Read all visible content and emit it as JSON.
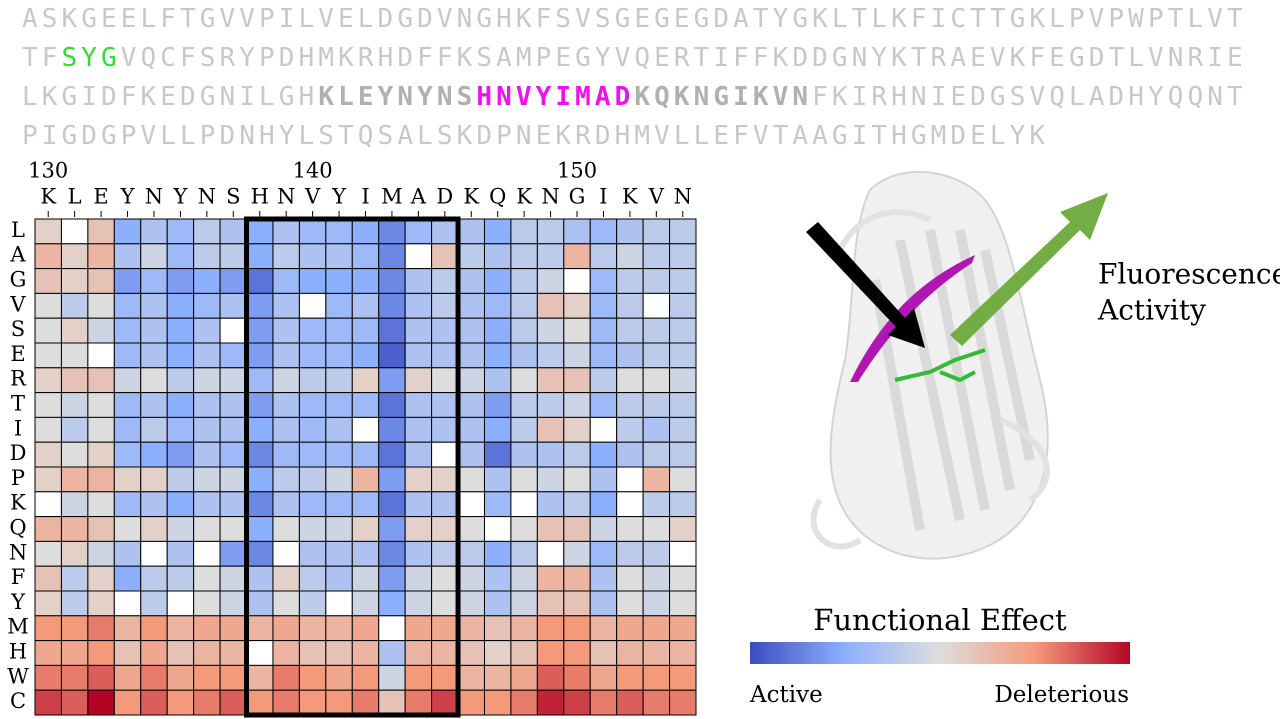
{
  "sequence": {
    "lines": [
      [
        {
          "text": "ASKGEELFTGVVPILVELDGDVNGHKFSVSGEGEGDATYGKLTLKFICTTGKLPVPWPTLVT",
          "color": "#c8c8c8",
          "bold": false
        }
      ],
      [
        {
          "text": "TF",
          "color": "#c8c8c8",
          "bold": false
        },
        {
          "text": "SYG",
          "color": "#33dd33",
          "bold": false
        },
        {
          "text": "VQCFSRYPDHMKRHDFFKSAMPEGYVQERTIFFKDDGNYKTRAEVKFEGDTLVNRIE",
          "color": "#c8c8c8",
          "bold": false
        }
      ],
      [
        {
          "text": "LKGIDFKEDGNILGH",
          "color": "#c8c8c8",
          "bold": false
        },
        {
          "text": "KLEYNYNS",
          "color": "#b0b0b0",
          "bold": true
        },
        {
          "text": "HNVYIMAD",
          "color": "#ee11ee",
          "bold": true
        },
        {
          "text": "KQKNGIKVN",
          "color": "#b0b0b0",
          "bold": true
        },
        {
          "text": "FKIRHNIEDGSVQLADHYQQNT",
          "color": "#c8c8c8",
          "bold": false
        }
      ],
      [
        {
          "text": "PIGDGPVLLPDNHYLSTQSALSKDPNEKRDHMVLLEFVTAAGITHGMDELYK",
          "color": "#c8c8c8",
          "bold": false
        }
      ]
    ]
  },
  "chart_data": {
    "type": "heatmap",
    "columns": [
      "K",
      "L",
      "E",
      "Y",
      "N",
      "Y",
      "N",
      "S",
      "H",
      "N",
      "V",
      "Y",
      "I",
      "M",
      "A",
      "D",
      "K",
      "Q",
      "K",
      "N",
      "G",
      "I",
      "K",
      "V",
      "N"
    ],
    "xlim": [
      129.5,
      154.5
    ],
    "xticks": [
      130,
      140,
      150
    ],
    "rows": [
      "L",
      "A",
      "G",
      "V",
      "S",
      "E",
      "R",
      "T",
      "I",
      "D",
      "P",
      "K",
      "Q",
      "N",
      "F",
      "Y",
      "M",
      "H",
      "W",
      "C"
    ],
    "values": [
      [
        0.1,
        null,
        0.2,
        -0.5,
        -0.3,
        -0.4,
        -0.2,
        -0.3,
        -0.5,
        -0.3,
        -0.4,
        -0.4,
        -0.5,
        -0.7,
        -0.4,
        -0.3,
        -0.3,
        -0.5,
        -0.2,
        -0.2,
        -0.3,
        -0.4,
        -0.3,
        -0.2,
        -0.2
      ],
      [
        0.3,
        0.1,
        0.3,
        -0.3,
        -0.1,
        -0.4,
        -0.2,
        -0.2,
        -0.5,
        -0.2,
        -0.3,
        -0.3,
        -0.4,
        -0.7,
        null,
        0.2,
        -0.2,
        -0.3,
        -0.2,
        -0.2,
        0.3,
        -0.2,
        -0.1,
        -0.2,
        -0.2
      ],
      [
        0.2,
        0.1,
        0.2,
        -0.6,
        -0.4,
        -0.6,
        -0.5,
        -0.6,
        -0.8,
        -0.4,
        -0.5,
        -0.5,
        -0.5,
        -0.7,
        -0.3,
        -0.2,
        -0.3,
        -0.5,
        -0.2,
        -0.1,
        null,
        -0.4,
        -0.2,
        -0.2,
        -0.2
      ],
      [
        0.0,
        -0.2,
        0.0,
        -0.4,
        -0.3,
        -0.5,
        -0.4,
        -0.3,
        -0.6,
        -0.3,
        null,
        -0.4,
        -0.3,
        -0.7,
        -0.3,
        -0.2,
        -0.3,
        -0.4,
        -0.2,
        0.2,
        0.1,
        -0.4,
        -0.2,
        null,
        -0.2
      ],
      [
        0.0,
        0.1,
        -0.1,
        -0.4,
        -0.3,
        -0.5,
        -0.3,
        null,
        -0.6,
        -0.3,
        -0.4,
        -0.4,
        -0.4,
        -0.8,
        -0.3,
        -0.3,
        -0.3,
        -0.5,
        -0.2,
        -0.1,
        0.0,
        -0.4,
        -0.2,
        -0.2,
        -0.2
      ],
      [
        0.0,
        0.0,
        null,
        -0.4,
        -0.3,
        -0.5,
        -0.3,
        -0.4,
        -0.6,
        -0.3,
        -0.4,
        -0.4,
        -0.5,
        -0.9,
        -0.3,
        -0.3,
        -0.3,
        -0.5,
        -0.3,
        -0.2,
        -0.1,
        -0.4,
        -0.3,
        -0.2,
        -0.2
      ],
      [
        0.1,
        0.2,
        0.2,
        -0.1,
        0.0,
        -0.2,
        -0.1,
        -0.1,
        -0.4,
        -0.1,
        -0.2,
        -0.2,
        0.1,
        -0.6,
        0.1,
        0.0,
        -0.1,
        -0.3,
        0.0,
        0.2,
        0.2,
        -0.2,
        0.0,
        0.0,
        -0.1
      ],
      [
        0.0,
        -0.1,
        0.0,
        -0.4,
        -0.3,
        -0.5,
        -0.3,
        -0.3,
        -0.6,
        -0.3,
        -0.4,
        -0.4,
        -0.4,
        -0.8,
        -0.3,
        -0.3,
        -0.3,
        -0.6,
        -0.2,
        -0.2,
        -0.1,
        -0.4,
        -0.2,
        -0.2,
        -0.2
      ],
      [
        0.0,
        -0.2,
        0.0,
        -0.4,
        -0.2,
        -0.4,
        -0.3,
        -0.3,
        -0.5,
        -0.3,
        -0.4,
        -0.3,
        null,
        -0.7,
        -0.3,
        -0.3,
        -0.3,
        -0.5,
        -0.2,
        0.2,
        0.1,
        null,
        -0.2,
        -0.3,
        -0.2
      ],
      [
        0.1,
        0.0,
        0.1,
        -0.4,
        -0.5,
        -0.6,
        -0.3,
        -0.4,
        -0.7,
        -0.4,
        -0.4,
        -0.4,
        -0.4,
        -0.8,
        -0.3,
        null,
        -0.3,
        -0.8,
        -0.3,
        -0.3,
        -0.2,
        -0.5,
        -0.3,
        -0.2,
        -0.2
      ],
      [
        0.1,
        0.3,
        0.3,
        0.1,
        0.1,
        -0.2,
        -0.1,
        -0.1,
        -0.5,
        -0.2,
        -0.2,
        -0.1,
        0.3,
        -0.6,
        0.1,
        0.1,
        0.0,
        -0.3,
        0.0,
        -0.1,
        0.0,
        -0.3,
        null,
        0.3,
        0.0
      ],
      [
        null,
        -0.1,
        0.0,
        -0.4,
        -0.3,
        -0.5,
        -0.3,
        -0.3,
        -0.7,
        -0.3,
        -0.4,
        -0.4,
        -0.4,
        -0.8,
        -0.3,
        -0.3,
        null,
        -0.4,
        null,
        -0.3,
        -0.2,
        -0.5,
        null,
        -0.2,
        -0.2
      ],
      [
        0.3,
        0.3,
        0.2,
        0.0,
        0.1,
        -0.1,
        0.0,
        0.0,
        -0.5,
        0.0,
        -0.1,
        -0.1,
        0.1,
        -0.6,
        0.1,
        0.1,
        0.0,
        null,
        0.0,
        0.2,
        0.2,
        -0.1,
        0.0,
        0.0,
        0.1
      ],
      [
        0.0,
        0.1,
        -0.1,
        -0.3,
        null,
        -0.3,
        null,
        -0.6,
        -0.7,
        null,
        -0.3,
        -0.3,
        -0.3,
        -0.7,
        -0.3,
        -0.2,
        -0.2,
        -0.5,
        -0.2,
        null,
        -0.1,
        -0.4,
        -0.2,
        -0.2,
        null
      ],
      [
        0.2,
        -0.2,
        0.1,
        -0.5,
        -0.2,
        -0.2,
        0.0,
        -0.1,
        -0.3,
        0.1,
        -0.2,
        -0.3,
        -0.1,
        -0.6,
        -0.1,
        0.0,
        -0.1,
        -0.3,
        -0.1,
        0.3,
        0.3,
        -0.3,
        0.0,
        -0.1,
        0.0
      ],
      [
        0.1,
        -0.2,
        0.1,
        null,
        -0.2,
        null,
        0.0,
        -0.1,
        -0.3,
        0.0,
        -0.2,
        null,
        -0.1,
        -0.5,
        -0.1,
        0.0,
        -0.1,
        -0.3,
        -0.1,
        0.2,
        0.2,
        -0.3,
        0.0,
        -0.1,
        0.0
      ],
      [
        0.5,
        0.5,
        0.6,
        0.3,
        0.5,
        0.3,
        0.4,
        0.4,
        0.3,
        0.4,
        0.3,
        0.3,
        0.4,
        null,
        0.4,
        0.4,
        0.3,
        0.2,
        0.3,
        0.5,
        0.5,
        0.3,
        0.4,
        0.4,
        0.4
      ],
      [
        0.4,
        0.4,
        0.5,
        0.2,
        0.4,
        0.2,
        0.3,
        0.3,
        null,
        0.3,
        0.2,
        0.2,
        0.3,
        -0.3,
        0.3,
        0.3,
        0.2,
        0.1,
        0.2,
        0.5,
        0.5,
        0.2,
        0.3,
        0.3,
        0.3
      ],
      [
        0.6,
        0.6,
        0.7,
        0.4,
        0.6,
        0.4,
        0.5,
        0.5,
        0.3,
        0.6,
        0.5,
        0.4,
        0.5,
        -0.1,
        0.5,
        0.5,
        0.3,
        0.3,
        0.4,
        0.7,
        0.6,
        0.4,
        0.5,
        0.5,
        0.5
      ],
      [
        0.8,
        0.7,
        1.0,
        0.5,
        0.7,
        0.5,
        0.6,
        0.7,
        0.5,
        0.6,
        0.5,
        0.5,
        0.6,
        0.2,
        0.6,
        0.8,
        0.5,
        0.5,
        0.6,
        0.9,
        0.8,
        0.6,
        0.7,
        0.6,
        0.6
      ]
    ],
    "clim": [
      -1,
      1
    ],
    "colorscale": [
      "#3b4cc0",
      "#8db0fe",
      "#dddddd",
      "#f49a7b",
      "#b40426"
    ],
    "colorbar_title": "Functional Effect",
    "colorbar_low_label": "Active",
    "colorbar_high_label": "Deleterious"
  },
  "structure": {
    "label": [
      "Fluorescence",
      "Activity"
    ]
  }
}
